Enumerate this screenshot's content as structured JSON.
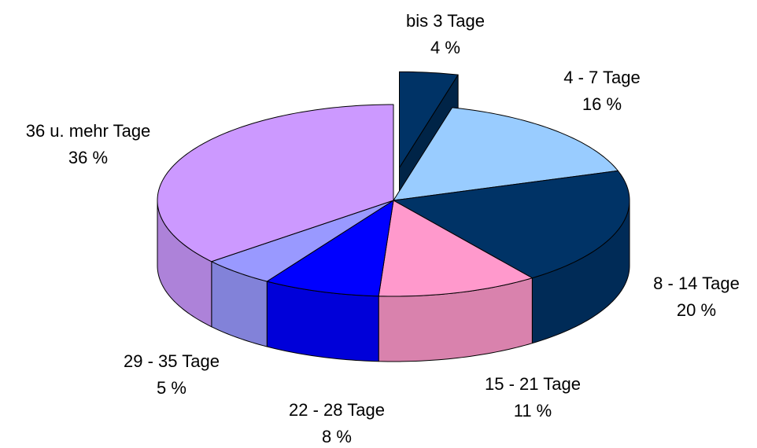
{
  "chart_data": {
    "type": "pie3d",
    "categories": [
      "bis 3 Tage",
      "4 - 7 Tage",
      "8 - 14 Tage",
      "15 - 21 Tage",
      "22 - 28 Tage",
      "29 - 35 Tage",
      "36 u. mehr Tage"
    ],
    "values": [
      4,
      16,
      20,
      11,
      8,
      5,
      36
    ],
    "value_labels": [
      "4 %",
      "16 %",
      "20 %",
      "11 %",
      "8 %",
      "5 %",
      "36 %"
    ],
    "colors": [
      "#003366",
      "#99ccff",
      "#003366",
      "#ff99cc",
      "#0000ff",
      "#9999ff",
      "#cc99ff"
    ],
    "exploded": [
      0
    ]
  }
}
